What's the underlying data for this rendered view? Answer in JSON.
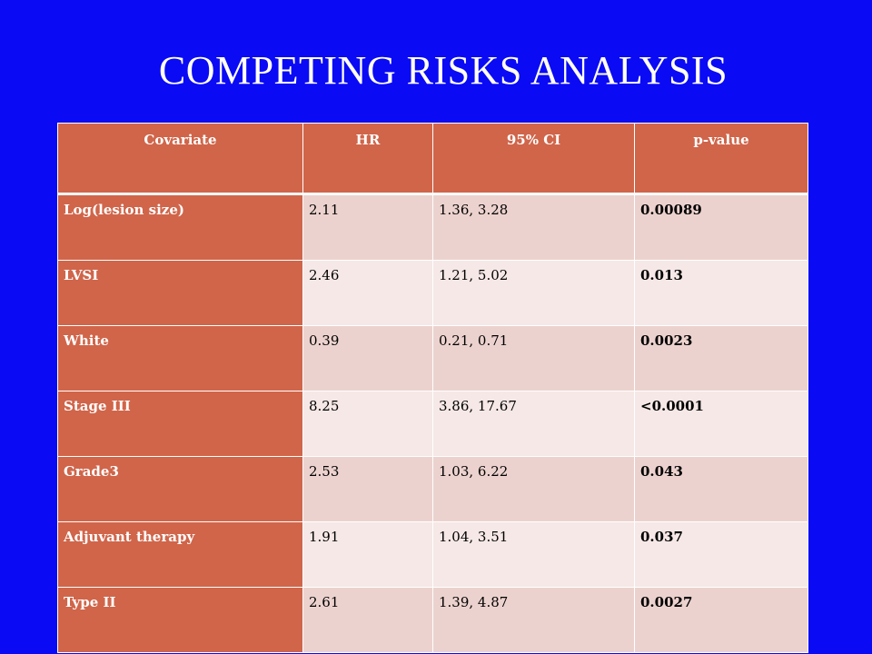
{
  "title": "COMPETING RISKS ANALYSIS",
  "table": {
    "headers": [
      "Covariate",
      "HR",
      "95% CI",
      "p-value"
    ],
    "rows": [
      {
        "covariate": "Log(lesion  size)",
        "hr": "2.11",
        "ci": "1.36, 3.28",
        "p": "0.00089"
      },
      {
        "covariate": "LVSI",
        "hr": "2.46",
        "ci": "1.21, 5.02",
        "p": "0.013"
      },
      {
        "covariate": "White",
        "hr": "0.39",
        "ci": "0.21, 0.71",
        "p": "0.0023"
      },
      {
        "covariate": "Stage III",
        "hr": "8.25",
        "ci": "3.86, 17.67",
        "p": "<0.0001"
      },
      {
        "covariate": "Grade3",
        "hr": "2.53",
        "ci": "1.03, 6.22",
        "p": "0.043"
      },
      {
        "covariate": "Adjuvant therapy",
        "hr": "1.91",
        "ci": "1.04, 3.51",
        "p": "0.037"
      },
      {
        "covariate": "Type II",
        "hr": "2.61",
        "ci": "1.39, 4.87",
        "p": "0.0027"
      }
    ]
  },
  "colors": {
    "background": "#0a0af5",
    "header_fill": "#d0654a",
    "row_odd": "#ecd2ce",
    "row_even": "#f5e8e6"
  }
}
